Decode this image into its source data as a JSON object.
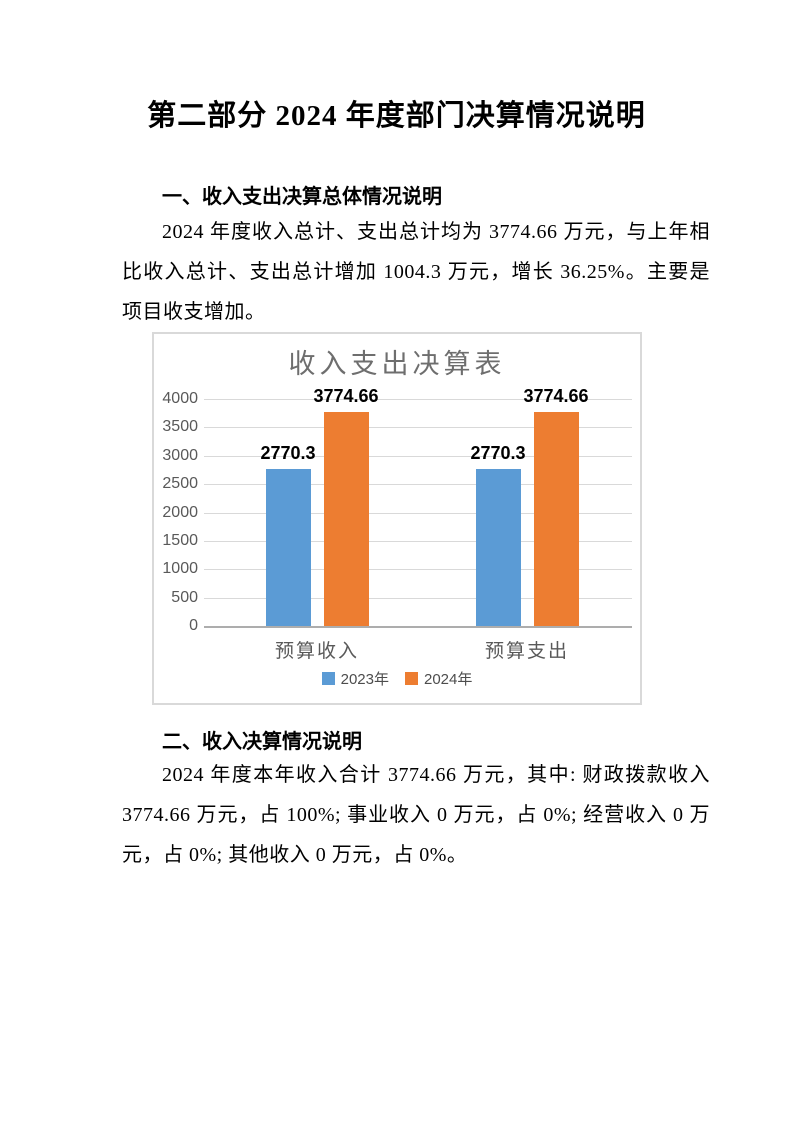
{
  "doc": {
    "title": "第二部分 2024 年度部门决算情况说明"
  },
  "sections": [
    {
      "heading": "一、收入支出决算总体情况说明",
      "paragraph": "2024 年度收入总计、支出总计均为 3774.66 万元，与上年相比收入总计、支出总计增加 1004.3 万元，增长 36.25%。主要是项目收支增加。"
    },
    {
      "heading": "二、收入决算情况说明",
      "paragraph": "2024 年度本年收入合计 3774.66 万元，其中: 财政拨款收入 3774.66 万元，占 100%; 事业收入 0 万元，占 0%; 经营收入 0 万元，占 0%; 其他收入 0 万元，占 0%。"
    }
  ],
  "chart_data": {
    "type": "bar",
    "title": "收入支出决算表",
    "categories": [
      "预算收入",
      "预算支出"
    ],
    "series": [
      {
        "name": "2023年",
        "color": "#5B9BD5",
        "values": [
          2770.3,
          2770.3
        ]
      },
      {
        "name": "2024年",
        "color": "#ED7D31",
        "values": [
          3774.66,
          3774.66
        ]
      }
    ],
    "ylim": [
      0,
      4000
    ],
    "ytick_step": 500,
    "grid": true,
    "legend_position": "bottom",
    "data_labels": true
  }
}
